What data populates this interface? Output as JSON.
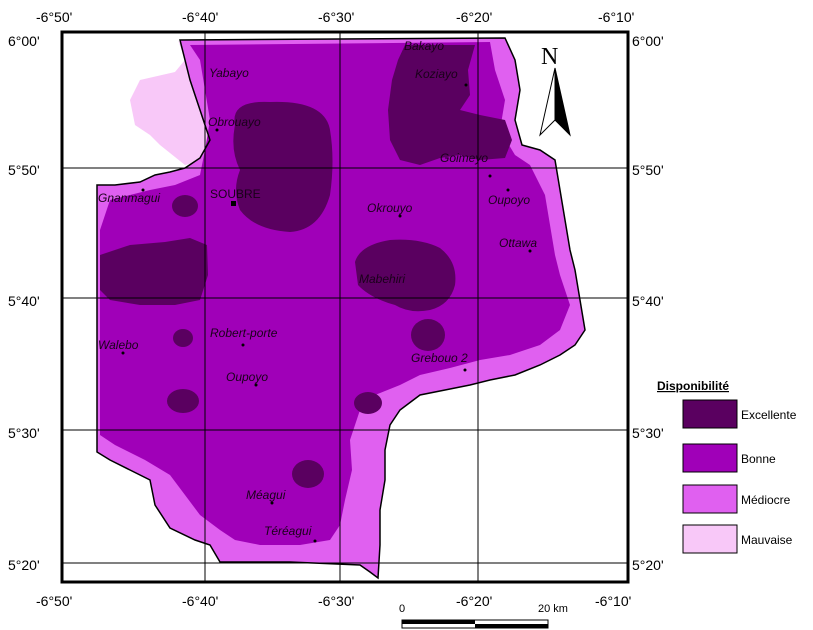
{
  "colors": {
    "excellente": "#5a0060",
    "bonne": "#a000b8",
    "mediocre": "#e060f0",
    "mauvaise": "#f8c8f8",
    "grid": "#000000"
  },
  "axes": {
    "top_ticks": [
      "-6°50'",
      "-6°40'",
      "-6°30'",
      "-6°20'",
      "-6°10'"
    ],
    "bottom_ticks": [
      "-6°50'",
      "-6°40'",
      "-6°30'",
      "-6°20'",
      "-6°10'"
    ],
    "left_ticks": [
      "6°00'",
      "5°50'",
      "5°40'",
      "5°30'",
      "5°20'"
    ],
    "right_ticks": [
      "6°00'",
      "5°50'",
      "5°40'",
      "5°30'",
      "5°20'"
    ]
  },
  "places": [
    {
      "name": "Bakayo",
      "italic": true
    },
    {
      "name": "Koziayo",
      "italic": true
    },
    {
      "name": "Yabayo",
      "italic": true
    },
    {
      "name": "Obrouayo",
      "italic": true
    },
    {
      "name": "Goimeyo",
      "italic": true
    },
    {
      "name": "Gnanmagui",
      "italic": true
    },
    {
      "name": "SOUBRE",
      "italic": false
    },
    {
      "name": "Okrouyo",
      "italic": true
    },
    {
      "name": "Oupoyo",
      "italic": true
    },
    {
      "name": "Ottawa",
      "italic": true
    },
    {
      "name": "Mabehiri",
      "italic": true
    },
    {
      "name": "Walebo",
      "italic": true
    },
    {
      "name": "Robert-porte",
      "italic": true
    },
    {
      "name": "Grebouo 2",
      "italic": true
    },
    {
      "name": "Oupoyo",
      "italic": true
    },
    {
      "name": "Méagui",
      "italic": true
    },
    {
      "name": "Téréagui",
      "italic": true
    }
  ],
  "north_arrow": {
    "letter": "N",
    "icon": "north-arrow-icon"
  },
  "legend": {
    "title": "Disponibilité",
    "items": [
      {
        "label": "Excellente",
        "color_key": "excellente"
      },
      {
        "label": "Bonne",
        "color_key": "bonne"
      },
      {
        "label": "Médiocre",
        "color_key": "mediocre"
      },
      {
        "label": "Mauvaise",
        "color_key": "mauvaise"
      }
    ]
  },
  "scale_bar": {
    "start_label": "0",
    "end_label": "20 km"
  }
}
